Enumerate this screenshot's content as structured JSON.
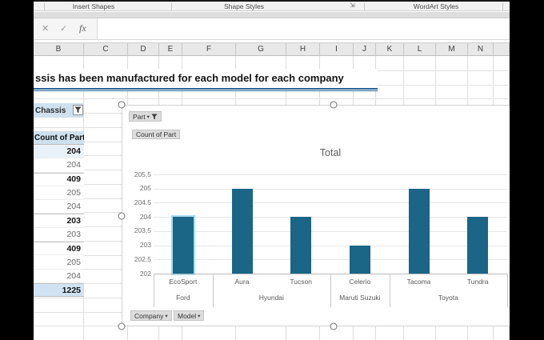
{
  "ribbon": {
    "groups": [
      "Insert Shapes",
      "Shape Styles",
      "WordArt Styles"
    ]
  },
  "icons": {
    "cancel": "✕",
    "enter": "✓",
    "fx": "fx",
    "dialog_launcher": "⇲",
    "dropdown": "▾"
  },
  "formula_bar": {
    "value": ""
  },
  "sheet": {
    "columns": [
      "B",
      "C",
      "D",
      "E",
      "F",
      "G",
      "H",
      "I",
      "J",
      "K",
      "L",
      "M",
      "N"
    ]
  },
  "heading": {
    "text": "ssis has been manufactured for each model for each company"
  },
  "pivot": {
    "filter_field": "Chassis",
    "values_header": "Count of Part",
    "rows": [
      {
        "value": "204",
        "bold": true,
        "shade": "light",
        "sep": false
      },
      {
        "value": "204",
        "bold": false,
        "shade": "",
        "sep": false
      },
      {
        "value": "409",
        "bold": true,
        "shade": "",
        "sep": true
      },
      {
        "value": "205",
        "bold": false,
        "shade": "",
        "sep": false
      },
      {
        "value": "204",
        "bold": false,
        "shade": "",
        "sep": false
      },
      {
        "value": "203",
        "bold": true,
        "shade": "",
        "sep": true
      },
      {
        "value": "203",
        "bold": false,
        "shade": "",
        "sep": false
      },
      {
        "value": "409",
        "bold": true,
        "shade": "",
        "sep": true
      },
      {
        "value": "205",
        "bold": false,
        "shade": "",
        "sep": false
      },
      {
        "value": "204",
        "bold": false,
        "shade": "",
        "sep": false
      },
      {
        "value": "1225",
        "bold": true,
        "shade": "total",
        "sep": true
      }
    ]
  },
  "chart": {
    "buttons": {
      "part": "Part",
      "values": "Count of Part",
      "company": "Company",
      "model": "Model"
    }
  },
  "chart_data": {
    "type": "bar",
    "title": "Total",
    "categories": [
      "EcoSport",
      "Aura",
      "Tucson",
      "Celerio",
      "Tacoma",
      "Tundra"
    ],
    "groups": [
      {
        "label": "Ford",
        "span": 1
      },
      {
        "label": "Hyundai",
        "span": 2
      },
      {
        "label": "Maruti Suzuki",
        "span": 1
      },
      {
        "label": "Toyota",
        "span": 2
      }
    ],
    "values": [
      204,
      205,
      204,
      203,
      205,
      204
    ],
    "ylim": [
      202,
      205.5
    ],
    "yticks": [
      205.5,
      205,
      204.5,
      204,
      203.5,
      203,
      202.5,
      202
    ],
    "bar_color": "#1b6587",
    "highlighted_bar": "EcoSport",
    "grid": true,
    "legend": "none",
    "xlabel": "",
    "ylabel": ""
  },
  "colors": {
    "accent_blue": "#2a6399",
    "bar": "#1b6587",
    "pivot_header_bg": "#cfe0ee",
    "total_row_bg": "#cfe3f2"
  }
}
